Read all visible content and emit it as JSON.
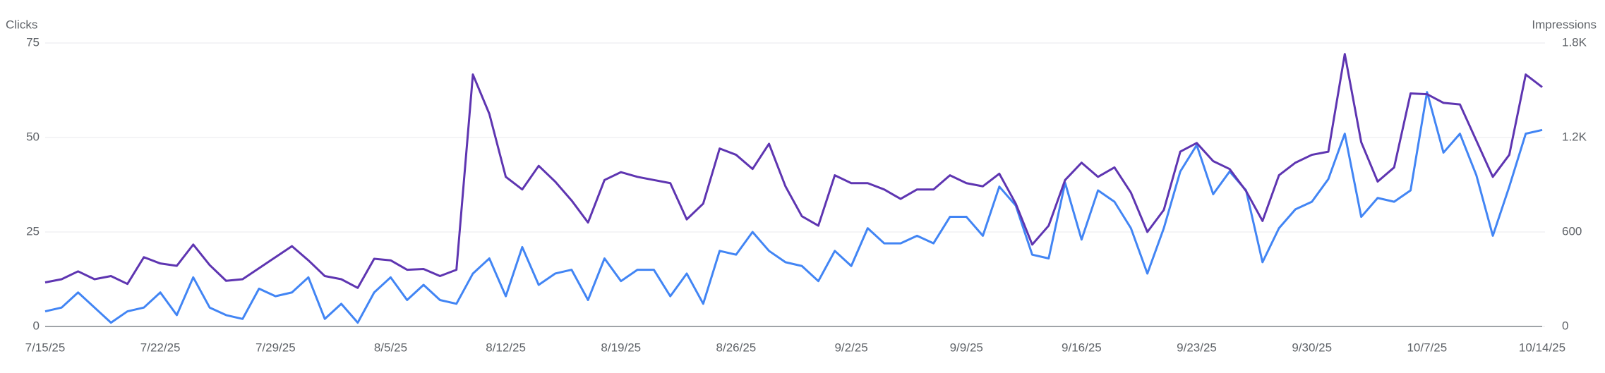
{
  "chart_data": {
    "type": "line",
    "ylabel": "Clicks",
    "y2label": "Impressions",
    "categories": [
      "7/15/25",
      null,
      null,
      null,
      null,
      null,
      null,
      "7/22/25",
      null,
      null,
      null,
      null,
      null,
      null,
      "7/29/25",
      null,
      null,
      null,
      null,
      null,
      null,
      "8/5/25",
      null,
      null,
      null,
      null,
      null,
      null,
      "8/12/25",
      null,
      null,
      null,
      null,
      null,
      null,
      "8/19/25",
      null,
      null,
      null,
      null,
      null,
      null,
      "8/26/25",
      null,
      null,
      null,
      null,
      null,
      null,
      "9/2/25",
      null,
      null,
      null,
      null,
      null,
      null,
      "9/9/25",
      null,
      null,
      null,
      null,
      null,
      null,
      "9/16/25",
      null,
      null,
      null,
      null,
      null,
      null,
      "9/23/25",
      null,
      null,
      null,
      null,
      null,
      null,
      "9/30/25",
      null,
      null,
      null,
      null,
      null,
      null,
      "10/7/25",
      null,
      null,
      null,
      null,
      null,
      null,
      "10/14/25"
    ],
    "series": [
      {
        "color": "#4285f4",
        "axis": "y",
        "values": [
          4,
          5,
          9,
          5,
          1,
          4,
          5,
          9,
          3,
          13,
          5,
          3,
          2,
          10,
          8,
          9,
          13,
          2,
          6,
          1,
          9,
          13,
          7,
          11,
          7,
          6,
          14,
          18,
          8,
          21,
          11,
          14,
          15,
          7,
          18,
          12,
          15,
          15,
          8,
          14,
          6,
          20,
          19,
          25,
          20,
          17,
          16,
          12,
          20,
          16,
          26,
          22,
          22,
          24,
          22,
          29,
          29,
          24,
          37,
          32,
          19,
          18,
          38,
          23,
          36,
          33,
          26,
          14,
          26,
          41,
          48,
          35,
          41,
          36,
          17,
          26,
          31,
          33,
          39,
          51,
          29,
          34,
          33,
          36,
          62,
          46,
          51,
          40,
          24,
          37,
          51,
          52
        ]
      },
      {
        "color": "#5e35b1",
        "axis": "y2",
        "values": [
          280,
          300,
          350,
          300,
          320,
          270,
          440,
          400,
          385,
          520,
          390,
          290,
          300,
          370,
          440,
          510,
          420,
          320,
          300,
          245,
          430,
          420,
          360,
          365,
          320,
          360,
          1600,
          1350,
          950,
          870,
          1020,
          920,
          800,
          660,
          930,
          980,
          950,
          930,
          910,
          680,
          780,
          1130,
          1090,
          1000,
          1160,
          890,
          700,
          640,
          960,
          910,
          910,
          870,
          810,
          870,
          870,
          960,
          910,
          890,
          970,
          780,
          520,
          640,
          930,
          1040,
          950,
          1010,
          850,
          600,
          740,
          1110,
          1165,
          1050,
          1000,
          860,
          670,
          960,
          1040,
          1090,
          1110,
          1730,
          1170,
          920,
          1010,
          1480,
          1475,
          1420,
          1410,
          1180,
          950,
          1090,
          1600,
          1520
        ]
      }
    ],
    "ylim": [
      0,
      75
    ],
    "yticks": [
      0,
      25,
      50,
      75
    ],
    "y2lim": [
      0,
      1800
    ],
    "y2ticks": [
      0,
      600,
      {
        "value": 1200,
        "label": "1.2K"
      },
      {
        "value": 1800,
        "label": "1.8K"
      }
    ],
    "grid": true
  }
}
